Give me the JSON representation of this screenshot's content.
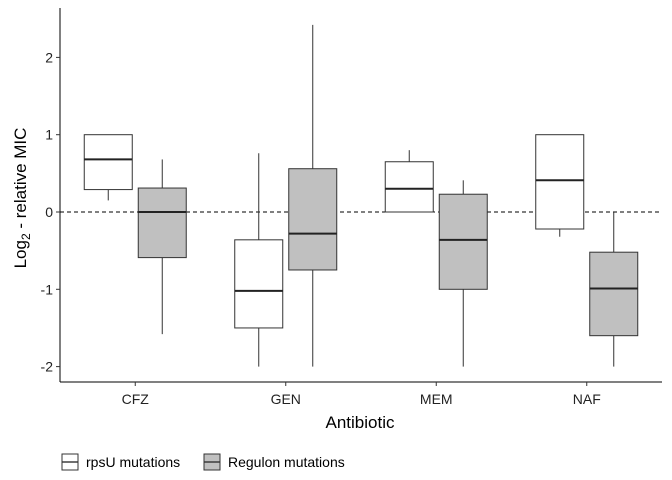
{
  "chart_data": {
    "type": "boxplot",
    "xlabel": "Antibiotic",
    "ylabel_main": "Log",
    "ylabel_sub": "2",
    "ylabel_rest": " - relative MIC",
    "ylim": [
      -2.2,
      2.6
    ],
    "yticks": [
      {
        "value": 2,
        "label": "2"
      },
      {
        "value": 1,
        "label": "1"
      },
      {
        "value": 0,
        "label": "0"
      },
      {
        "value": -1,
        "label": "-1"
      },
      {
        "value": -2,
        "label": "-2"
      }
    ],
    "reference_line": {
      "y": 0,
      "style": "dashed"
    },
    "categories": [
      "CFZ",
      "GEN",
      "MEM",
      "NAF"
    ],
    "series": [
      {
        "name": "rpsU mutations",
        "fill": "#ffffff",
        "boxes": [
          {
            "min": 0.15,
            "q1": 0.29,
            "median": 0.68,
            "q3": 1.0,
            "max": 1.0
          },
          {
            "min": -2.0,
            "q1": -1.5,
            "median": -1.02,
            "q3": -0.36,
            "max": 0.76
          },
          {
            "min": 0.0,
            "q1": 0.0,
            "median": 0.3,
            "q3": 0.65,
            "max": 0.8
          },
          {
            "min": -0.32,
            "q1": -0.22,
            "median": 0.41,
            "q3": 1.0,
            "max": 1.0
          }
        ]
      },
      {
        "name": "Regulon mutations",
        "fill": "#c0c0c0",
        "boxes": [
          {
            "min": -1.58,
            "q1": -0.59,
            "median": 0.0,
            "q3": 0.31,
            "max": 0.68
          },
          {
            "min": -2.0,
            "q1": -0.75,
            "median": -0.28,
            "q3": 0.56,
            "max": 2.42
          },
          {
            "min": -2.0,
            "q1": -1.0,
            "median": -0.36,
            "q3": 0.23,
            "max": 0.41
          },
          {
            "min": -2.0,
            "q1": -1.6,
            "median": -0.99,
            "q3": -0.52,
            "max": 0.0
          }
        ]
      }
    ],
    "legend_position": "bottom-left",
    "grid": false
  }
}
